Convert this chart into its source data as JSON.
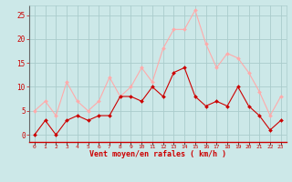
{
  "x": [
    0,
    1,
    2,
    3,
    4,
    5,
    6,
    7,
    8,
    9,
    10,
    11,
    12,
    13,
    14,
    15,
    16,
    17,
    18,
    19,
    20,
    21,
    22,
    23
  ],
  "avg_wind": [
    0,
    3,
    0,
    3,
    4,
    3,
    4,
    4,
    8,
    8,
    7,
    10,
    8,
    13,
    14,
    8,
    6,
    7,
    6,
    10,
    6,
    4,
    1,
    3
  ],
  "gust_wind": [
    5,
    7,
    4,
    11,
    7,
    5,
    7,
    12,
    8,
    10,
    14,
    11,
    18,
    22,
    22,
    26,
    19,
    14,
    17,
    16,
    13,
    9,
    4,
    8
  ],
  "avg_color": "#cc0000",
  "gust_color": "#ffaaaa",
  "bg_color": "#cce8e8",
  "grid_color": "#aacccc",
  "xlabel": "Vent moyen/en rafales ( km/h )",
  "xlabel_color": "#cc0000",
  "ylabel_color": "#cc0000",
  "yticks": [
    0,
    5,
    10,
    15,
    20,
    25
  ],
  "ylim": [
    -1.5,
    27
  ],
  "xlim": [
    -0.5,
    23.5
  ]
}
